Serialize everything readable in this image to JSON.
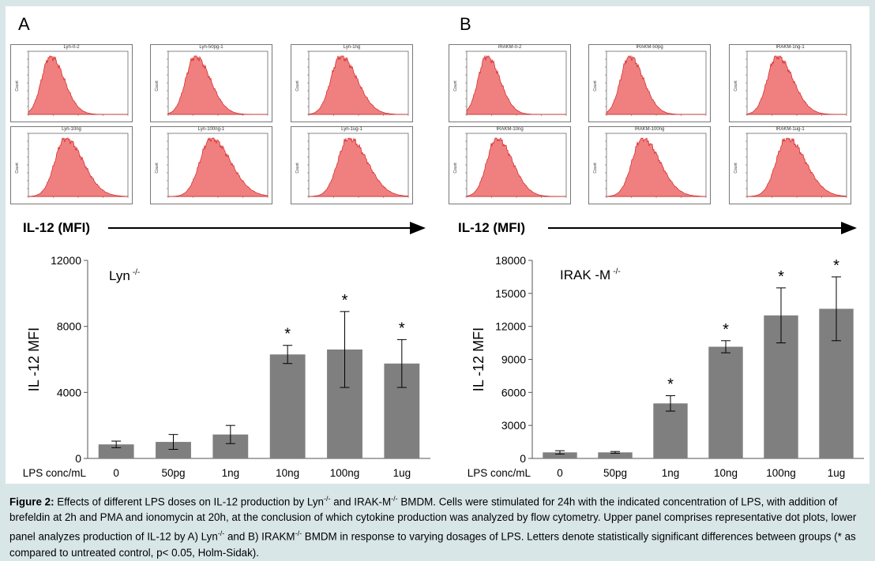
{
  "panels": {
    "a_letter": "A",
    "b_letter": "B"
  },
  "histograms": {
    "a": [
      {
        "title": "Lyn-0-2",
        "peak": 0.22
      },
      {
        "title": "Lyn-50pg-1",
        "peak": 0.27
      },
      {
        "title": "Lyn-1ng",
        "peak": 0.32
      },
      {
        "title": "Lyn-10ng",
        "peak": 0.37
      },
      {
        "title": "Lyn-100ng-1",
        "peak": 0.43
      },
      {
        "title": "Lyn-1ug-1",
        "peak": 0.4
      }
    ],
    "b": [
      {
        "title": "IRAKM-0-2",
        "peak": 0.2
      },
      {
        "title": "IRAKM-50pg",
        "peak": 0.23
      },
      {
        "title": "IRAKM-1ng-1",
        "peak": 0.3
      },
      {
        "title": "IRAKM-10ng",
        "peak": 0.3
      },
      {
        "title": "IRAKM-100ng",
        "peak": 0.36
      },
      {
        "title": "IRAKM-1ug-1",
        "peak": 0.4
      }
    ],
    "y_axis_label": "Count",
    "fill_color": "#f08080",
    "stroke_color": "#d22020"
  },
  "mfi_label": "IL-12 (MFI)",
  "chart_data": [
    {
      "type": "bar",
      "title": "Lyn -/-",
      "title_main": "Lyn",
      "title_sup": "-/-",
      "ylabel": "IL -12 MFI",
      "xlabel": "LPS  conc/mL",
      "categories": [
        "0",
        "50pg",
        "1ng",
        "10ng",
        "100ng",
        "1ug"
      ],
      "values": [
        850,
        1000,
        1450,
        6300,
        6600,
        5750
      ],
      "errors": [
        200,
        450,
        550,
        550,
        2300,
        1450
      ],
      "significant": [
        false,
        false,
        false,
        true,
        true,
        true
      ],
      "ylim": [
        0,
        12000
      ],
      "yticks": [
        0,
        4000,
        8000,
        12000
      ],
      "bar_color": "#7f7f7f"
    },
    {
      "type": "bar",
      "title": "IRAK -M -/-",
      "title_main": "IRAK  -M",
      "title_sup": "-/-",
      "ylabel": "IL -12 MFI",
      "xlabel": "LPS  conc/mL",
      "categories": [
        "0",
        "50pg",
        "1ng",
        "10ng",
        "100ng",
        "1ug"
      ],
      "values": [
        550,
        550,
        5000,
        10150,
        13000,
        13600
      ],
      "errors": [
        150,
        80,
        700,
        550,
        2500,
        2900
      ],
      "significant": [
        false,
        false,
        true,
        true,
        true,
        true
      ],
      "ylim": [
        0,
        18000
      ],
      "yticks": [
        0,
        3000,
        6000,
        9000,
        12000,
        15000,
        18000
      ],
      "bar_color": "#7f7f7f"
    }
  ],
  "significance_marker": "*",
  "caption": {
    "label": "Figure 2:",
    "text_1": " Effects of different LPS doses on IL-12 production by Lyn",
    "sup_1": "-/-",
    "text_2": " and IRAK-M",
    "sup_2": "-/-",
    "text_3": " BMDM. Cells were stimulated for 24h with the indicated concentration of LPS, with addition of brefeldin at 2h and PMA and ionomycin at 20h, at the conclusion of which cytokine production was analyzed by flow cytometry. Upper panel comprises representative dot plots, lower panel analyzes production of IL-12 by A) Lyn",
    "sup_3": "-/-",
    "text_4": " and B) IRAKM",
    "sup_4": "-/-",
    "text_5": " BMDM in response to varying dosages of LPS. Letters denote statistically significant differences between groups (* as compared to untreated control, p< 0.05, Holm-Sidak)."
  }
}
